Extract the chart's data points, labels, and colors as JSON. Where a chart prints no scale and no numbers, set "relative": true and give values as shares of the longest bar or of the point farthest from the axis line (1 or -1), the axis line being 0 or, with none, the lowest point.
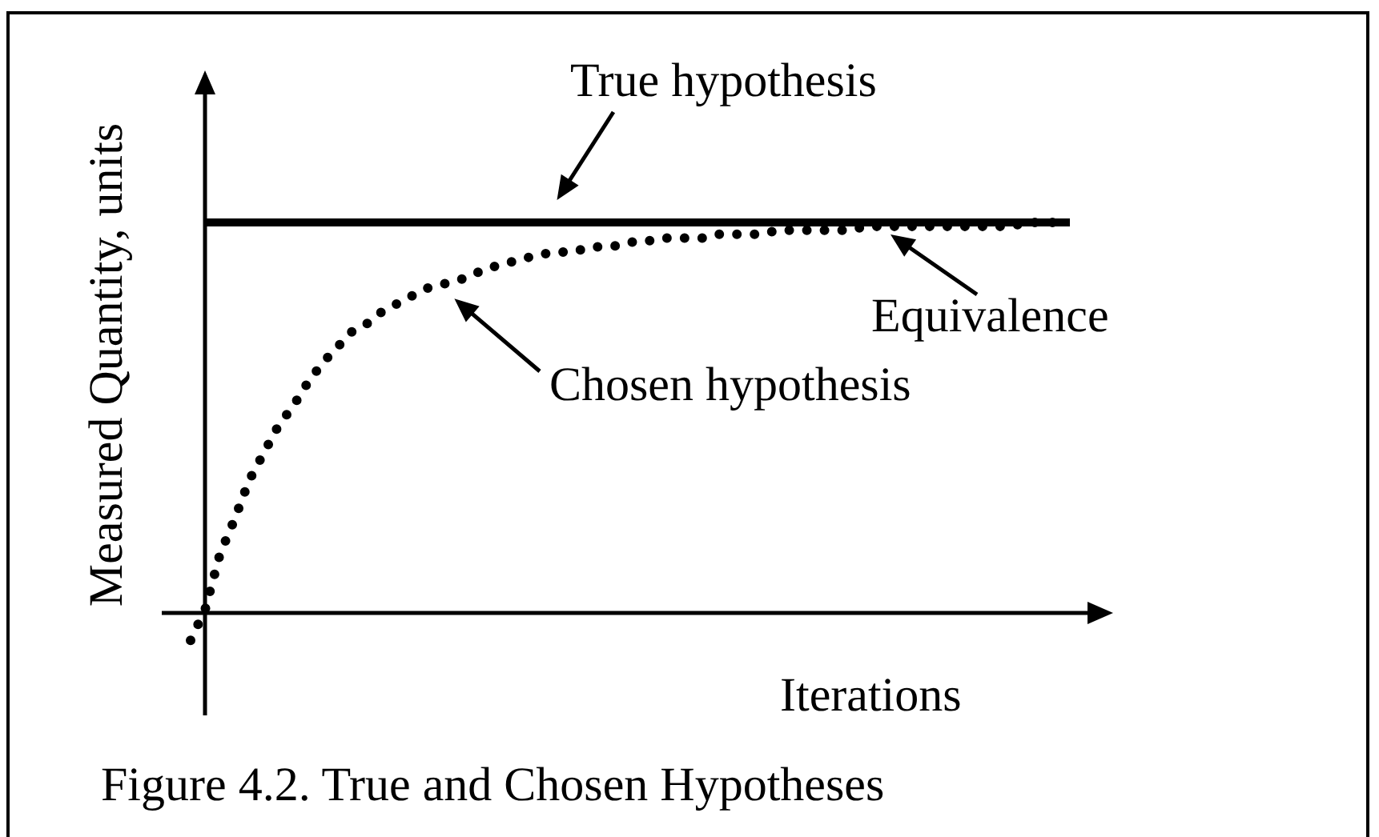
{
  "chart_data": {
    "type": "line",
    "relative": true,
    "xlabel": "Iterations",
    "ylabel": "Measured Quantity, units",
    "tick_labels": false,
    "categories": [
      null,
      null,
      null,
      null,
      null,
      null,
      null,
      null,
      null,
      null,
      null,
      null,
      null,
      null,
      null,
      null,
      null,
      null,
      null,
      null,
      null,
      null,
      null,
      null,
      null,
      null,
      null,
      null,
      null,
      null,
      null,
      null,
      null,
      null,
      null,
      null,
      null,
      null,
      null,
      null,
      null,
      null,
      null,
      null,
      null,
      null,
      null,
      null,
      null,
      null,
      null,
      null,
      null,
      null,
      null,
      null,
      null,
      null,
      null,
      null,
      null
    ],
    "series": [
      {
        "name": "True hypothesis",
        "color": "#000000",
        "line_style": "solid",
        "values": [
          null,
          1,
          1,
          1,
          1,
          1,
          1,
          1,
          1,
          1,
          1,
          1,
          1,
          1,
          1,
          1,
          1,
          1,
          1,
          1,
          1,
          1,
          1,
          1,
          1,
          1,
          1,
          1,
          1,
          1,
          1,
          1,
          1,
          1,
          1,
          1,
          1,
          1,
          1,
          1,
          1,
          1,
          1,
          1,
          1,
          1,
          1,
          1,
          1,
          1,
          1,
          1,
          1,
          1,
          1,
          1,
          1,
          1,
          1,
          1,
          1
        ]
      },
      {
        "name": "Chosen hypothesis",
        "color": "#000000",
        "line_style": "dotted",
        "values": [
          -0.07,
          0.01,
          0.15,
          0.24,
          0.34,
          0.41,
          0.48,
          0.53,
          0.59,
          0.64,
          0.68,
          0.72,
          0.74,
          0.77,
          0.79,
          0.81,
          0.83,
          0.84,
          0.85,
          0.86,
          0.88,
          0.89,
          0.9,
          0.91,
          0.92,
          0.92,
          0.93,
          0.93,
          0.94,
          0.94,
          0.95,
          0.95,
          0.96,
          0.96,
          0.96,
          0.96,
          0.97,
          0.97,
          0.97,
          0.97,
          0.98,
          0.98,
          0.98,
          0.98,
          0.98,
          0.98,
          0.99,
          0.99,
          0.99,
          0.99,
          0.99,
          0.99,
          0.99,
          0.99,
          0.99,
          0.99,
          0.99,
          1,
          1,
          1,
          1
        ]
      }
    ],
    "annotations": [
      {
        "text": "Equivalence",
        "y": 0.99
      },
      "Figure 4.2. True and Chosen Hypotheses"
    ]
  }
}
